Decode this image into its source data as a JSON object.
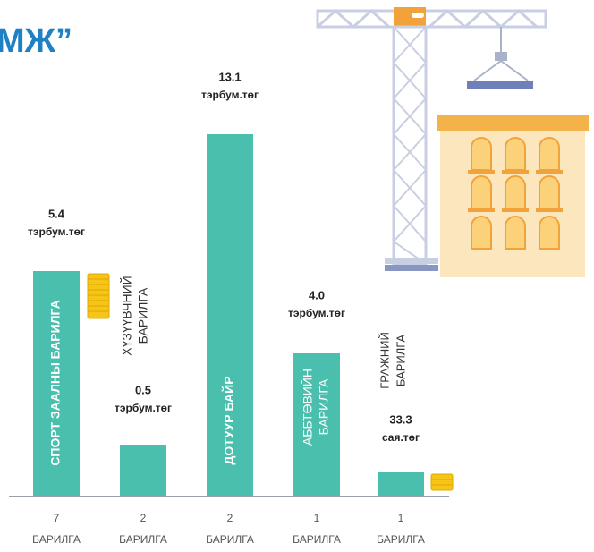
{
  "title": "МЖ”",
  "items": [
    {
      "label": [
        "СПОРТ ЗААЛНЫ БАРИЛГА"
      ],
      "value": "5.4",
      "unit": "тэрбум.төг",
      "count": "7",
      "count_unit": "БАРИЛГА"
    },
    {
      "label": [
        "ХҮЗҮҮВЧНИЙ",
        "БАРИЛГА"
      ],
      "value": "0.5",
      "unit": "тэрбум.төг",
      "count": "2",
      "count_unit": "БАРИЛГА"
    },
    {
      "label": [
        "ДОТУУР БАЙР"
      ],
      "value": "13.1",
      "unit": "тэрбум.төг",
      "count": "2",
      "count_unit": "БАРИЛГА"
    },
    {
      "label": [
        "АББТӨВИЙН",
        "БАРИЛГА"
      ],
      "value": "4.0",
      "unit": "тэрбум.төг",
      "count": "1",
      "count_unit": "БАРИЛГА"
    },
    {
      "label": [
        "ГРАЖНИЙ",
        "БАРИЛГА"
      ],
      "value": "33.3",
      "unit": "сая.төг",
      "count": "1",
      "count_unit": "БАРИЛГА"
    }
  ]
}
